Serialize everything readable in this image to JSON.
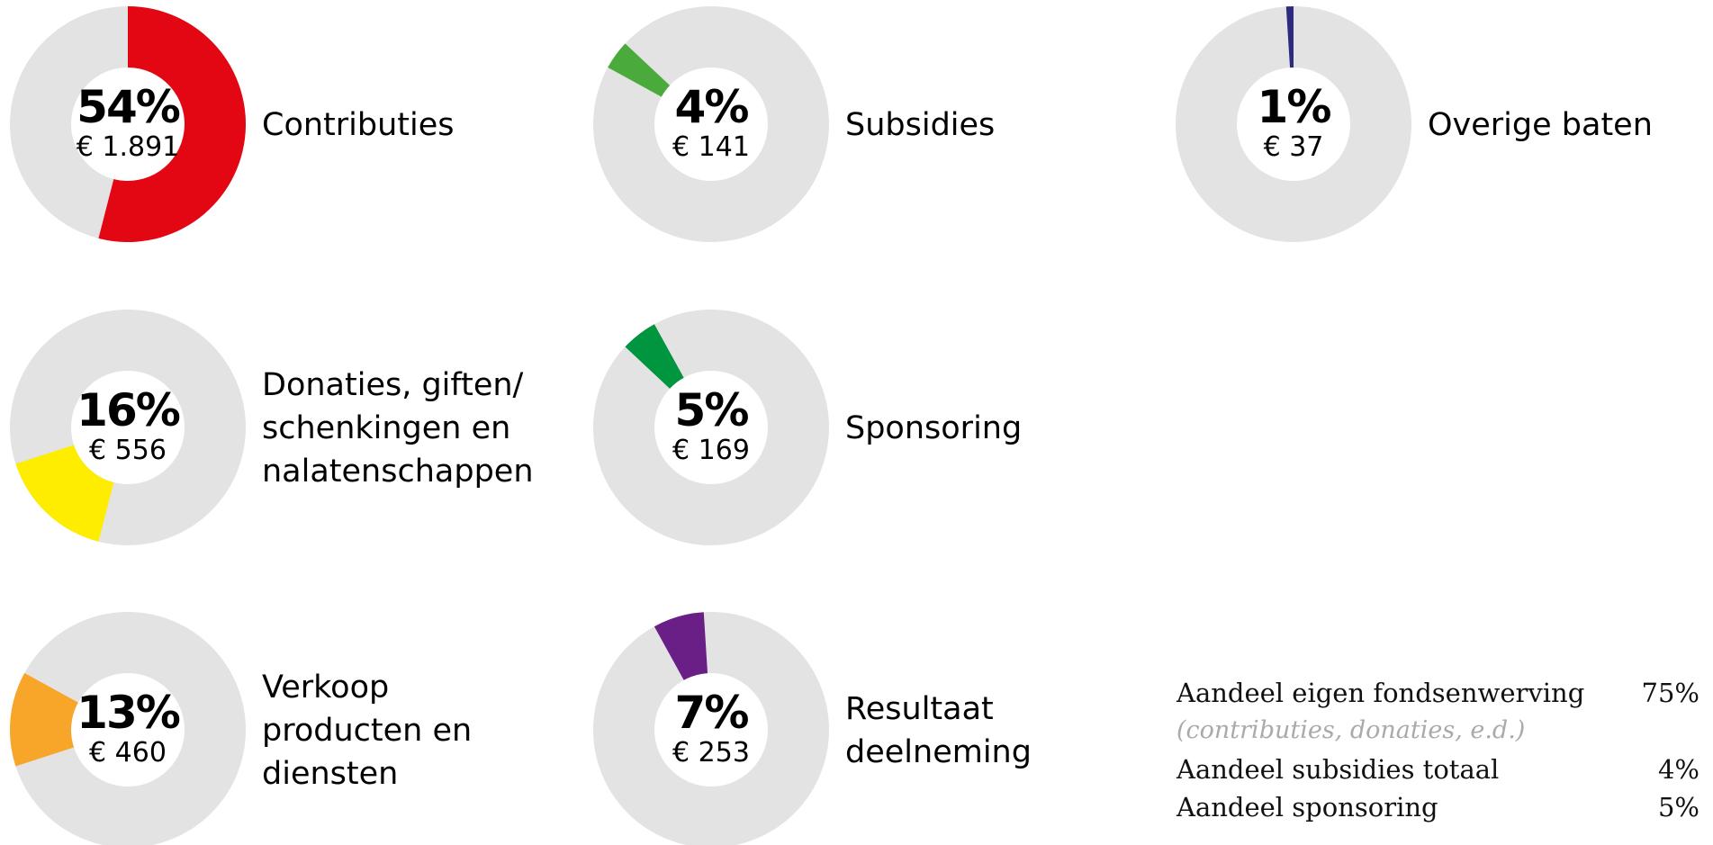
{
  "chart_data": {
    "type": "donut",
    "items": [
      {
        "label": [
          "Contributies"
        ],
        "value": 54,
        "value_label": "54%",
        "amount": 1891,
        "amount_label": "€ 1.891",
        "color": "#e30613"
      },
      {
        "label": [
          "Donaties, giften/",
          "schenkingen en",
          "nalatenschappen"
        ],
        "value": 16,
        "value_label": "16%",
        "amount": 556,
        "amount_label": "€ 556",
        "color": "#ffed00"
      },
      {
        "label": [
          "Verkoop",
          "producten en",
          "diensten"
        ],
        "value": 13,
        "value_label": "13%",
        "amount": 460,
        "amount_label": "€ 460",
        "color": "#f7a62a"
      },
      {
        "label": [
          "Subsidies"
        ],
        "value": 4,
        "value_label": "4%",
        "amount": 141,
        "amount_label": "€ 141",
        "color": "#4aab3c"
      },
      {
        "label": [
          "Sponsoring"
        ],
        "value": 5,
        "value_label": "5%",
        "amount": 169,
        "amount_label": "€ 169",
        "color": "#009640"
      },
      {
        "label": [
          "Resultaat",
          "deelneming"
        ],
        "value": 7,
        "value_label": "7%",
        "amount": 253,
        "amount_label": "€ 253",
        "color": "#6a1f87"
      },
      {
        "label": [
          "Overige baten"
        ],
        "value": 1,
        "value_label": "1%",
        "amount": 37,
        "amount_label": "€ 37",
        "color": "#2d2a7f"
      }
    ],
    "track_color": "#e3e3e3"
  },
  "summary": [
    {
      "label": "Aandeel eigen fondsenwerving",
      "value": "75%",
      "note": "(contributies, donaties, e.d.)"
    },
    {
      "label": "Aandeel subsidies totaal",
      "value": "4%"
    },
    {
      "label": "Aandeel sponsoring",
      "value": "5%"
    }
  ]
}
